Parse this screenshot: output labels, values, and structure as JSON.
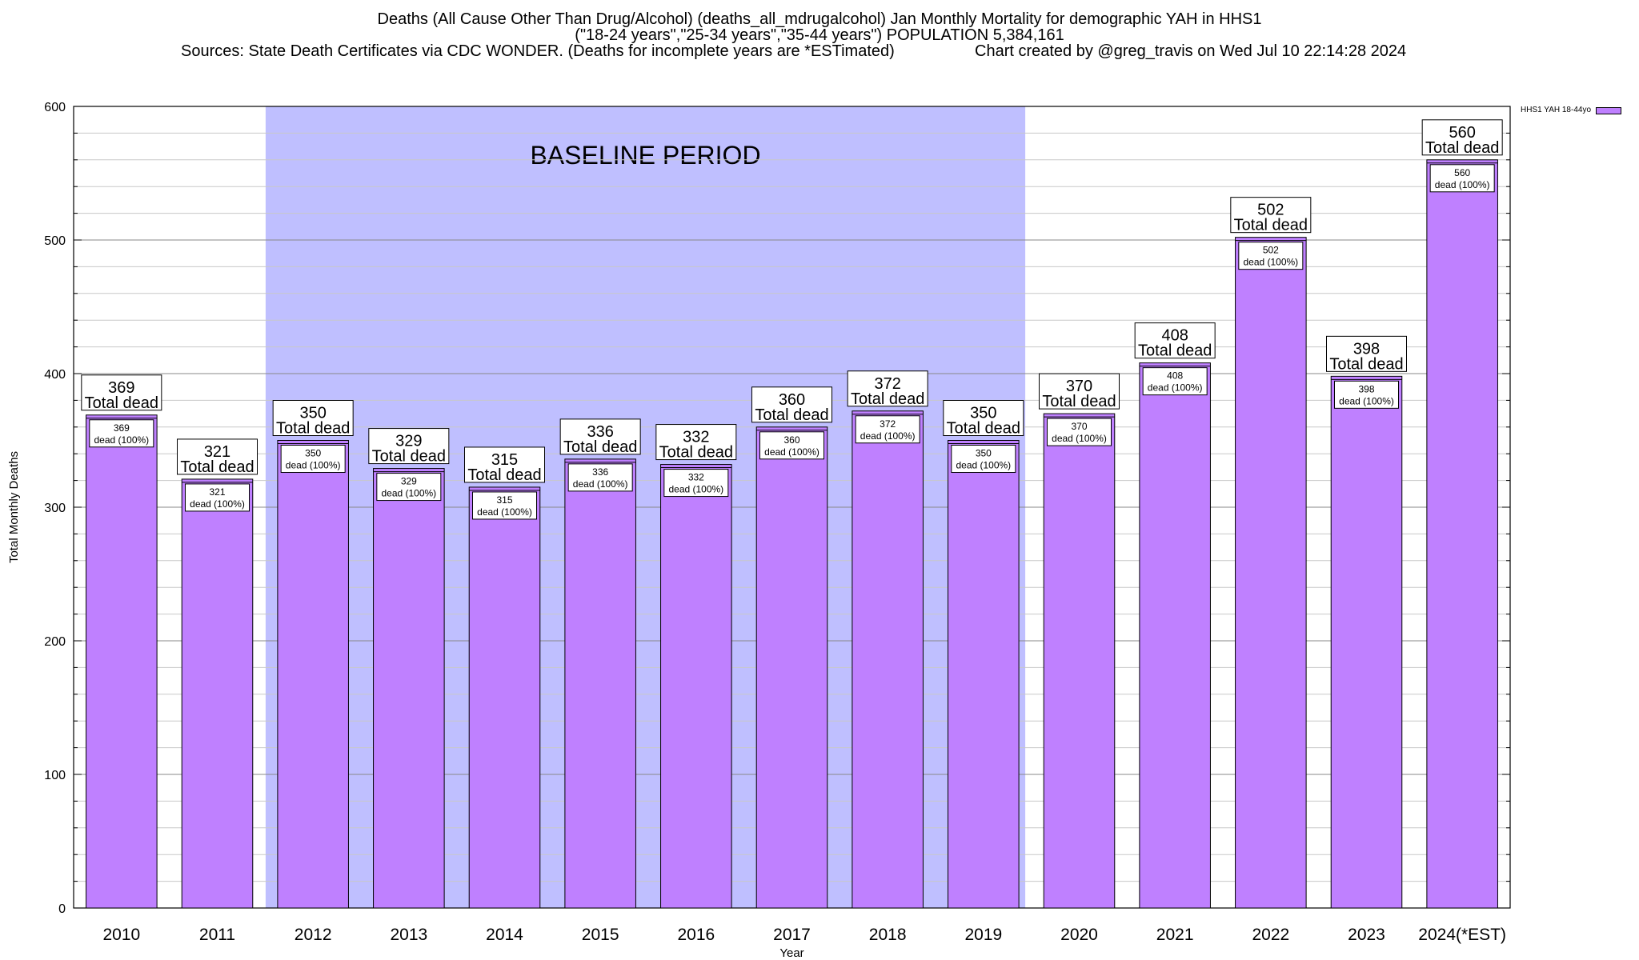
{
  "header": {
    "title_line1": "Deaths (All Cause Other Than Drug/Alcohol) (deaths_all_mdrugalcohol) Jan Monthly Mortality for demographic YAH in HHS1",
    "title_line2": "(\"18-24 years\",\"25-34 years\",\"35-44 years\") POPULATION 5,384,161",
    "sources": "Sources: State Death Certificates via CDC WONDER. (Deaths for incomplete years are *ESTimated)",
    "credit": "Chart created by @greg_travis on Wed Jul 10 22:14:28 2024"
  },
  "legend": {
    "label": "HHS1 YAH 18-44yo"
  },
  "colors": {
    "bar": "#bf80ff",
    "baseline_band": "#bfbfff",
    "grid": "#a0a0a0"
  },
  "chart_data": {
    "type": "bar",
    "categories": [
      "2010",
      "2011",
      "2012",
      "2013",
      "2014",
      "2015",
      "2016",
      "2017",
      "2018",
      "2019",
      "2020",
      "2021",
      "2022",
      "2023",
      "2024(*EST)"
    ],
    "series": [
      {
        "name": "HHS1 YAH 18-44yo",
        "values": [
          369,
          321,
          350,
          329,
          315,
          336,
          332,
          360,
          372,
          350,
          370,
          408,
          502,
          398,
          560
        ]
      }
    ],
    "xlabel": "Year",
    "ylabel": "Total Monthly Deaths",
    "ylim": [
      0,
      600
    ],
    "yticks": [
      0,
      100,
      200,
      300,
      400,
      500,
      600
    ],
    "grid": true,
    "legend_position": "top-right outside",
    "baseline_period": {
      "label": "BASELINE PERIOD",
      "from": "2012",
      "to": "2019"
    },
    "annotation_total_label": "Total dead",
    "annotation_inner_label": "dead (100%)"
  }
}
